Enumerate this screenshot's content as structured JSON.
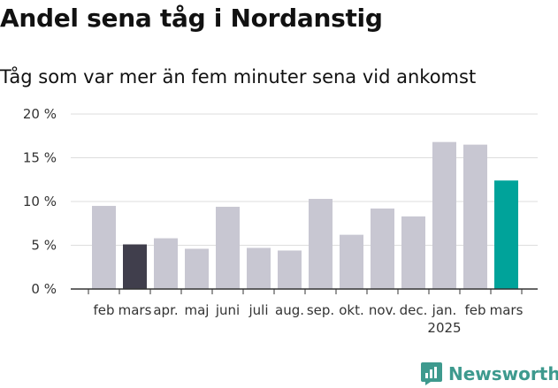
{
  "header": {
    "title": "Andel sena tåg i Nordanstig",
    "subtitle": "Tåg som var mer än fem minuter sena vid ankomst"
  },
  "brand": {
    "name": "Newsworthy",
    "color": "#3e9a8e"
  },
  "colors": {
    "bar": "#c8c7d2",
    "highlight_prev": "#403e4c",
    "highlight_current": "#00a39a",
    "grid": "#dddddd",
    "axis": "#333333"
  },
  "chart_data": {
    "type": "bar",
    "categories": [
      "feb",
      "mars",
      "apr.",
      "maj",
      "juni",
      "juli",
      "aug.",
      "sep.",
      "okt.",
      "nov.",
      "dec.",
      "jan.",
      "feb",
      "mars"
    ],
    "year_label": {
      "category_index": 11,
      "text": "2025"
    },
    "values": [
      9.5,
      5.1,
      5.8,
      4.6,
      9.4,
      4.7,
      4.4,
      10.3,
      6.2,
      9.2,
      8.3,
      16.8,
      16.5,
      12.4
    ],
    "highlight": {
      "1": "prev",
      "13": "current"
    },
    "yticks": [
      0,
      5,
      10,
      15,
      20
    ],
    "ytick_labels": [
      "0 %",
      "5 %",
      "10 %",
      "15 %",
      "20 %"
    ],
    "ylim": [
      0,
      20
    ],
    "grid": true,
    "xlabel": "",
    "ylabel": ""
  }
}
